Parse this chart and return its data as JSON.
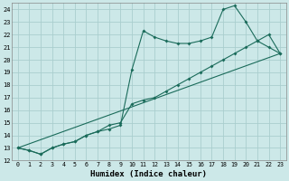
{
  "xlabel": "Humidex (Indice chaleur)",
  "bg_color": "#cce8e8",
  "grid_color": "#aacece",
  "line_color": "#1a6b5a",
  "xlim": [
    -0.5,
    23.5
  ],
  "ylim": [
    12,
    24.5
  ],
  "xticks": [
    0,
    1,
    2,
    3,
    4,
    5,
    6,
    7,
    8,
    9,
    10,
    11,
    12,
    13,
    14,
    15,
    16,
    17,
    18,
    19,
    20,
    21,
    22,
    23
  ],
  "yticks": [
    12,
    13,
    14,
    15,
    16,
    17,
    18,
    19,
    20,
    21,
    22,
    23,
    24
  ],
  "line1_x": [
    0,
    1,
    2,
    3,
    4,
    5,
    6,
    7,
    8,
    9,
    10,
    11,
    12,
    13,
    14,
    15,
    16,
    17,
    18,
    19,
    20,
    21,
    22,
    23
  ],
  "line1_y": [
    13,
    12.8,
    12.5,
    13.0,
    13.3,
    13.5,
    14.0,
    14.3,
    14.5,
    14.8,
    19.2,
    22.3,
    21.8,
    21.5,
    21.3,
    21.3,
    21.5,
    21.8,
    24.0,
    24.3,
    23.0,
    21.5,
    21.0,
    20.5
  ],
  "line2_x": [
    0,
    1,
    2,
    3,
    4,
    5,
    6,
    7,
    8,
    9,
    10,
    11,
    12,
    13,
    14,
    15,
    16,
    17,
    18,
    19,
    20,
    21,
    22,
    23
  ],
  "line2_y": [
    13,
    12.8,
    12.5,
    13.0,
    13.3,
    13.5,
    14.0,
    14.3,
    14.8,
    15.0,
    16.5,
    16.8,
    17.0,
    17.5,
    18.0,
    18.5,
    19.0,
    19.5,
    20.0,
    20.5,
    21.0,
    21.5,
    22.0,
    20.5
  ],
  "line3_x": [
    0,
    23
  ],
  "line3_y": [
    13,
    20.5
  ]
}
